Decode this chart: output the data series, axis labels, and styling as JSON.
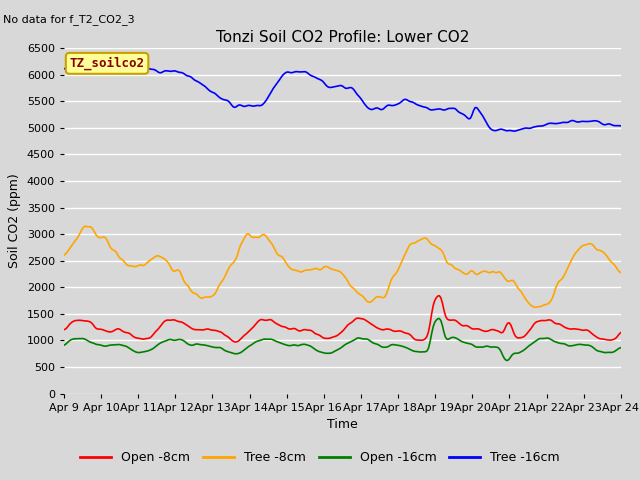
{
  "title": "Tonzi Soil CO2 Profile: Lower CO2",
  "subtitle": "No data for f_T2_CO2_3",
  "xlabel": "Time",
  "ylabel": "Soil CO2 (ppm)",
  "ylim": [
    0,
    6500
  ],
  "yticks": [
    0,
    500,
    1000,
    1500,
    2000,
    2500,
    3000,
    3500,
    4000,
    4500,
    5000,
    5500,
    6000,
    6500
  ],
  "legend_label": "TZ_soilco2",
  "legend_labels": [
    "Open -8cm",
    "Tree -8cm",
    "Open -16cm",
    "Tree -16cm"
  ],
  "legend_colors": [
    "red",
    "orange",
    "green",
    "blue"
  ],
  "bg_color": "#d8d8d8",
  "plot_bg_color": "#d8d8d8",
  "grid_color": "white",
  "title_fontsize": 11,
  "axis_fontsize": 9,
  "tick_fontsize": 8,
  "n_points": 360,
  "x_start": 9,
  "x_end": 24,
  "x_ticks": [
    9,
    10,
    11,
    12,
    13,
    14,
    15,
    16,
    17,
    18,
    19,
    20,
    21,
    22,
    23,
    24
  ],
  "x_tick_labels": [
    "Apr 9",
    "Apr 10",
    "Apr 11",
    "Apr 12",
    "Apr 13",
    "Apr 14",
    "Apr 15",
    "Apr 16",
    "Apr 17",
    "Apr 18",
    "Apr 19",
    "Apr 20",
    "Apr 21",
    "Apr 22",
    "Apr 23",
    "Apr 24"
  ]
}
